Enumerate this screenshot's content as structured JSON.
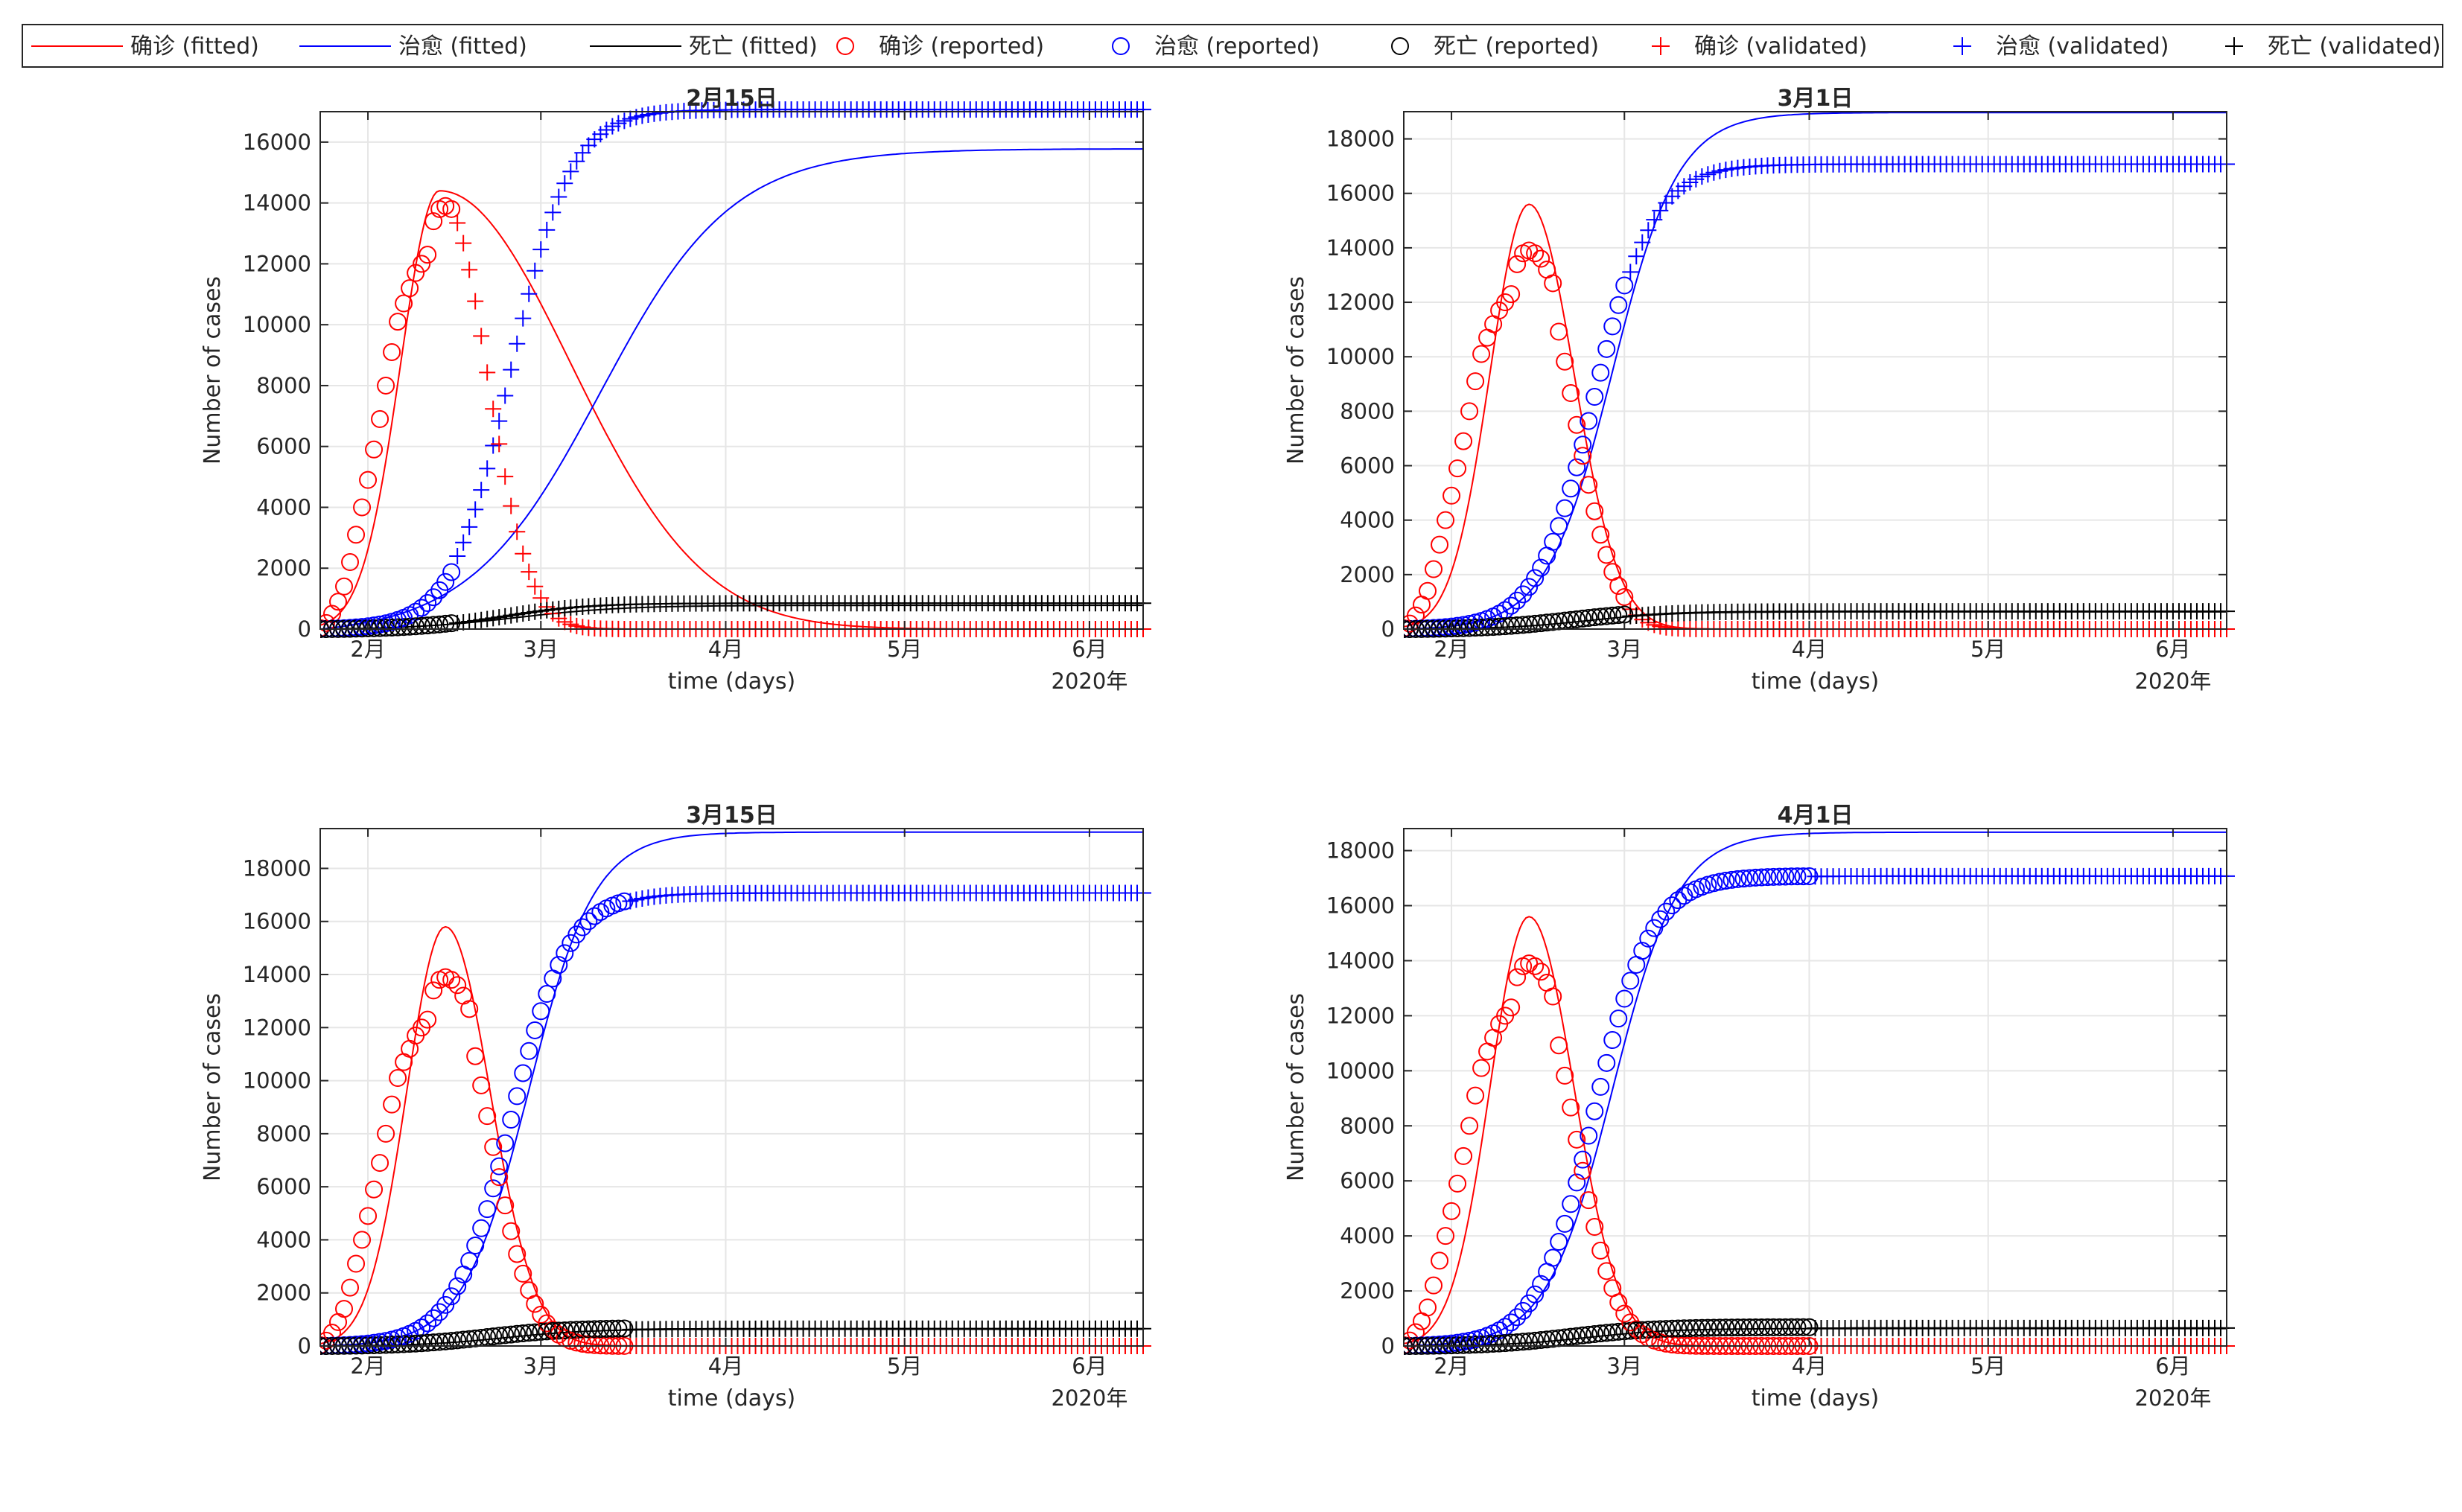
{
  "legend": {
    "placement": "top",
    "entries": [
      {
        "label": "确诊 (fitted)",
        "color": "#ff0000",
        "marker": "line"
      },
      {
        "label": "治愈 (fitted)",
        "color": "#0000ff",
        "marker": "line"
      },
      {
        "label": "死亡 (fitted)",
        "color": "#000000",
        "marker": "line"
      },
      {
        "label": "确诊 (reported)",
        "color": "#ff0000",
        "marker": "circle"
      },
      {
        "label": "治愈 (reported)",
        "color": "#0000ff",
        "marker": "circle"
      },
      {
        "label": "死亡 (reported)",
        "color": "#000000",
        "marker": "circle"
      },
      {
        "label": "确诊 (validated)",
        "color": "#ff0000",
        "marker": "plus"
      },
      {
        "label": "治愈 (validated)",
        "color": "#0000ff",
        "marker": "plus"
      },
      {
        "label": "死亡 (validated)",
        "color": "#000000",
        "marker": "plus"
      }
    ]
  },
  "colors": {
    "confirmed": "#ff0000",
    "cured": "#0000ff",
    "deaths": "#000000",
    "grid": "#e6e6e6",
    "axis": "#262626"
  },
  "chart_data": [
    {
      "type": "line",
      "title": "2月15日",
      "xlabel": "time (days)",
      "ylabel": "Number of cases",
      "x_unit": "days since 2020-01-24",
      "x_range": [
        0,
        138
      ],
      "ylim": [
        0,
        17000
      ],
      "yticks": [
        0,
        2000,
        4000,
        6000,
        8000,
        10000,
        12000,
        14000,
        16000
      ],
      "xticks": [
        {
          "x": 8,
          "label": "2月"
        },
        {
          "x": 37,
          "label": "3月"
        },
        {
          "x": 68,
          "label": "4月"
        },
        {
          "x": 98,
          "label": "5月"
        },
        {
          "x": 129,
          "label": "6月"
        }
      ],
      "year_label": "2020年",
      "grid": true,
      "reported_days": 23,
      "fitted": {
        "confirmed": {
          "peak": 14400,
          "peak_day": 20,
          "rise": 6.5,
          "fall": 22
        },
        "cured": {
          "final": 16000,
          "mid": 47,
          "width": 11
        },
        "deaths": {
          "final": 800,
          "mid": 33,
          "width": 9
        }
      },
      "validated": {
        "confirmed": {
          "peak": 13900,
          "peak_day": 21,
          "rise": 7,
          "fall": 7
        },
        "cured": {
          "final": 17100,
          "mid": 32,
          "width": 5
        },
        "deaths": {
          "final": 860,
          "mid": 31,
          "width": 7
        }
      }
    },
    {
      "type": "line",
      "title": "3月1日",
      "xlabel": "time (days)",
      "ylabel": "Number of cases",
      "x_unit": "days since 2020-01-24",
      "x_range": [
        0,
        138
      ],
      "ylim": [
        0,
        19000
      ],
      "yticks": [
        0,
        2000,
        4000,
        6000,
        8000,
        10000,
        12000,
        14000,
        16000,
        18000
      ],
      "xticks": [
        {
          "x": 8,
          "label": "2月"
        },
        {
          "x": 37,
          "label": "3月"
        },
        {
          "x": 68,
          "label": "4月"
        },
        {
          "x": 98,
          "label": "5月"
        },
        {
          "x": 129,
          "label": "6月"
        }
      ],
      "year_label": "2020年",
      "grid": true,
      "reported_days": 38,
      "fitted": {
        "confirmed": {
          "peak": 15600,
          "peak_day": 21,
          "rise": 6.5,
          "fall": 7.5
        },
        "cured": {
          "final": 19000,
          "mid": 35,
          "width": 5.5
        },
        "deaths": {
          "final": 640,
          "mid": 31,
          "width": 7
        }
      },
      "validated": {
        "confirmed": {
          "peak": 13900,
          "peak_day": 21,
          "rise": 7,
          "fall": 7
        },
        "cured": {
          "final": 17100,
          "mid": 32,
          "width": 5
        },
        "deaths": {
          "final": 660,
          "mid": 31,
          "width": 7
        }
      }
    },
    {
      "type": "line",
      "title": "3月15日",
      "xlabel": "time (days)",
      "ylabel": "Number of cases",
      "x_unit": "days since 2020-01-24",
      "x_range": [
        0,
        138
      ],
      "ylim": [
        0,
        19500
      ],
      "yticks": [
        0,
        2000,
        4000,
        6000,
        8000,
        10000,
        12000,
        14000,
        16000,
        18000
      ],
      "xticks": [
        {
          "x": 8,
          "label": "2月"
        },
        {
          "x": 37,
          "label": "3月"
        },
        {
          "x": 68,
          "label": "4月"
        },
        {
          "x": 98,
          "label": "5月"
        },
        {
          "x": 129,
          "label": "6月"
        }
      ],
      "year_label": "2020年",
      "grid": true,
      "reported_days": 52,
      "fitted": {
        "confirmed": {
          "peak": 15800,
          "peak_day": 21,
          "rise": 6.5,
          "fall": 7.5
        },
        "cured": {
          "final": 19400,
          "mid": 35,
          "width": 5.5
        },
        "deaths": {
          "final": 640,
          "mid": 31,
          "width": 7
        }
      },
      "validated": {
        "confirmed": {
          "peak": 13900,
          "peak_day": 21,
          "rise": 7,
          "fall": 7
        },
        "cured": {
          "final": 17100,
          "mid": 32,
          "width": 5
        },
        "deaths": {
          "final": 660,
          "mid": 31,
          "width": 7
        }
      }
    },
    {
      "type": "line",
      "title": "4月1日",
      "xlabel": "time (days)",
      "ylabel": "Number of cases",
      "x_unit": "days since 2020-01-24",
      "x_range": [
        0,
        138
      ],
      "ylim": [
        0,
        18800
      ],
      "yticks": [
        0,
        2000,
        4000,
        6000,
        8000,
        10000,
        12000,
        14000,
        16000,
        18000
      ],
      "xticks": [
        {
          "x": 8,
          "label": "2月"
        },
        {
          "x": 37,
          "label": "3月"
        },
        {
          "x": 68,
          "label": "4月"
        },
        {
          "x": 98,
          "label": "5月"
        },
        {
          "x": 129,
          "label": "6月"
        }
      ],
      "year_label": "2020年",
      "grid": true,
      "reported_days": 69,
      "fitted": {
        "confirmed": {
          "peak": 15600,
          "peak_day": 21,
          "rise": 6.5,
          "fall": 7.5
        },
        "cured": {
          "final": 18700,
          "mid": 35,
          "width": 5.5
        },
        "deaths": {
          "final": 640,
          "mid": 31,
          "width": 7
        }
      },
      "validated": {
        "confirmed": {
          "peak": 13900,
          "peak_day": 21,
          "rise": 7,
          "fall": 7
        },
        "cured": {
          "final": 17100,
          "mid": 32,
          "width": 5
        },
        "deaths": {
          "final": 660,
          "mid": 31,
          "width": 7
        }
      }
    }
  ]
}
